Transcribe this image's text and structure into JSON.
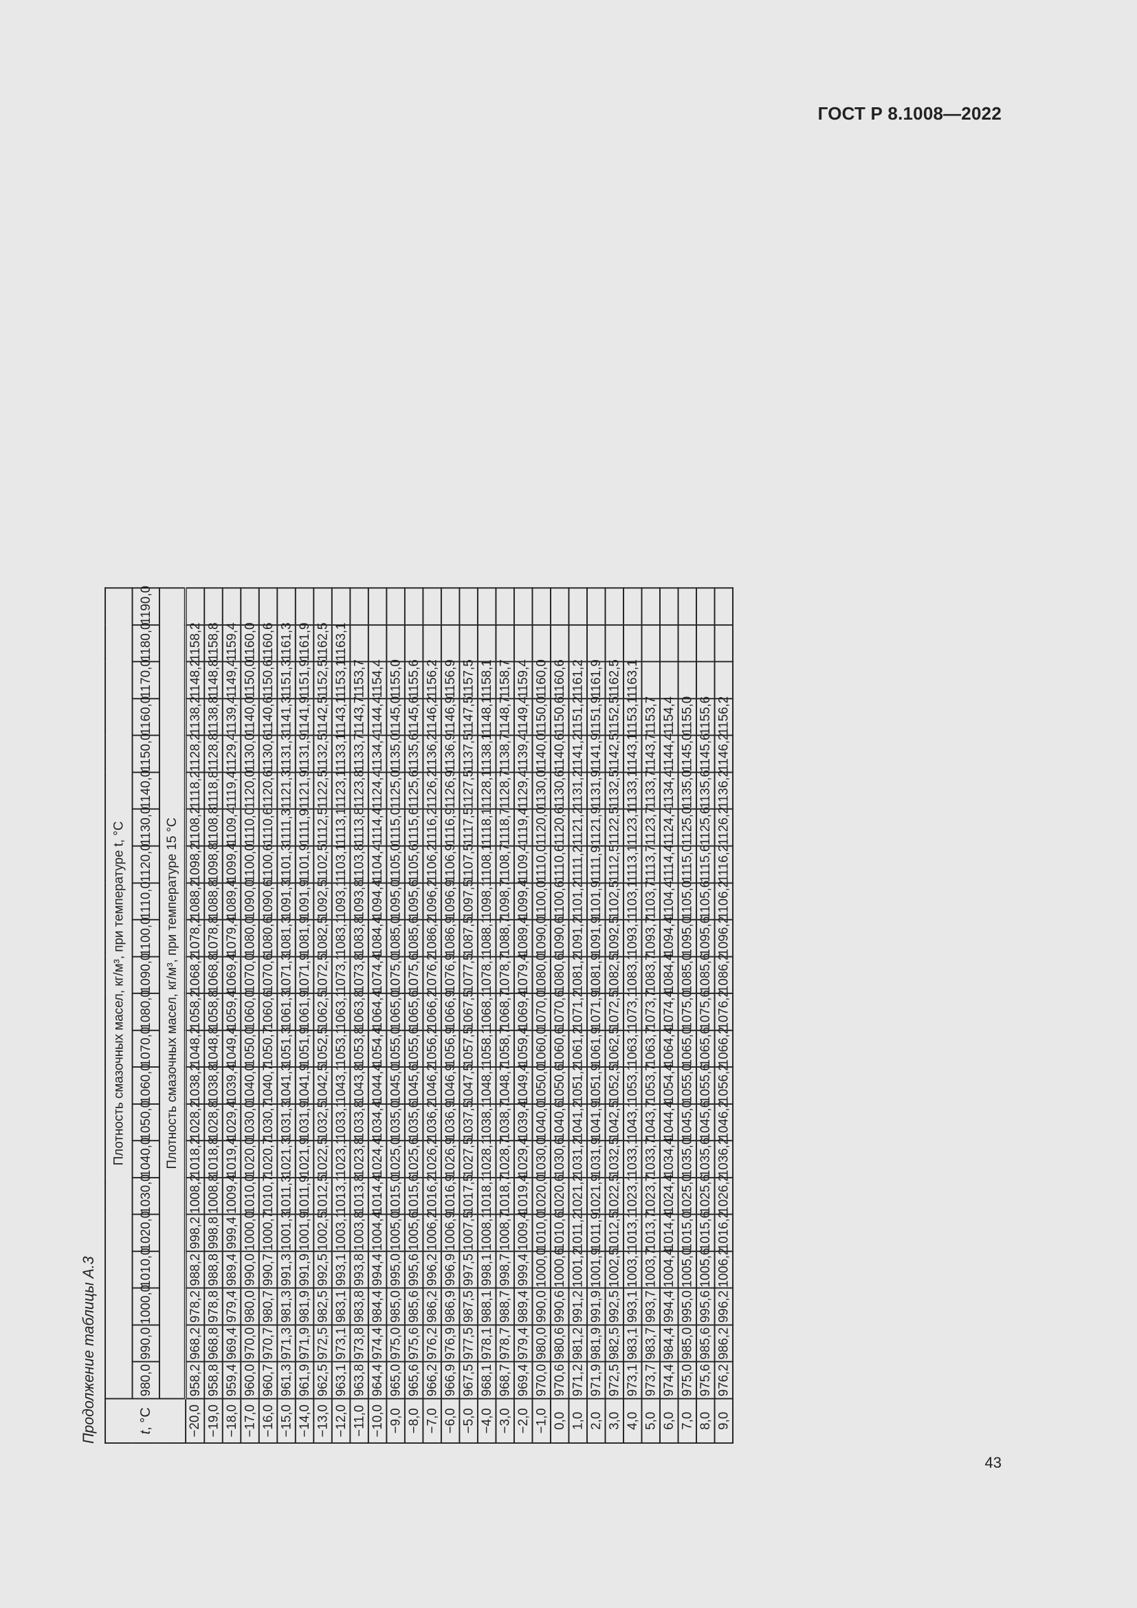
{
  "header": {
    "document_code": "ГОСТ Р 8.1008—2022"
  },
  "footer": {
    "page_number": "43"
  },
  "table": {
    "caption": "Продолжение таблицы А.3",
    "t_header": "t, °C",
    "group_header": "Плотность смазочных масел, кг/м³, при температуре t, °C",
    "sub_header": "Плотность смазочных масел, кг/м³, при температуре 15 °C",
    "columns": [
      "980,0",
      "990,0",
      "1000,0",
      "1010,0",
      "1020,0",
      "1030,0",
      "1040,0",
      "1050,0",
      "1060,0",
      "1070,0",
      "1080,0",
      "1090,0",
      "1100,0",
      "1110,0",
      "1120,0",
      "1130,0",
      "1140,0",
      "1150,0",
      "1160,0",
      "1170,0",
      "1180,0",
      "1190,0"
    ],
    "rows": [
      {
        "t": "−20,0",
        "v": [
          "958,2",
          "968,2",
          "978,2",
          "988,2",
          "998,2",
          "1008,2",
          "1018,2",
          "1028,2",
          "1038,2",
          "1048,2",
          "1058,2",
          "1068,2",
          "1078,2",
          "1088,2",
          "1098,2",
          "1108,2",
          "1118,2",
          "1128,2",
          "1138,2",
          "1148,2",
          "1158,2",
          ""
        ]
      },
      {
        "t": "−19,0",
        "v": [
          "958,8",
          "968,8",
          "978,8",
          "988,8",
          "998,8",
          "1008,8",
          "1018,8",
          "1028,8",
          "1038,8",
          "1048,8",
          "1058,8",
          "1068,8",
          "1078,8",
          "1088,8",
          "1098,8",
          "1108,8",
          "1118,8",
          "1128,8",
          "1138,8",
          "1148,8",
          "1158,8",
          ""
        ]
      },
      {
        "t": "−18,0",
        "v": [
          "959,4",
          "969,4",
          "979,4",
          "989,4",
          "999,4",
          "1009,4",
          "1019,4",
          "1029,4",
          "1039,4",
          "1049,4",
          "1059,4",
          "1069,4",
          "1079,4",
          "1089,4",
          "1099,4",
          "1109,4",
          "1119,4",
          "1129,4",
          "1139,4",
          "1149,4",
          "1159,4",
          ""
        ]
      },
      {
        "t": "−17,0",
        "v": [
          "960,0",
          "970,0",
          "980,0",
          "990,0",
          "1000,0",
          "1010,0",
          "1020,0",
          "1030,0",
          "1040,0",
          "1050,0",
          "1060,0",
          "1070,0",
          "1080,0",
          "1090,0",
          "1100,0",
          "1110,0",
          "1120,0",
          "1130,0",
          "1140,0",
          "1150,0",
          "1160,0",
          ""
        ]
      },
      {
        "t": "−16,0",
        "v": [
          "960,7",
          "970,7",
          "980,7",
          "990,7",
          "1000,7",
          "1010,7",
          "1020,7",
          "1030,7",
          "1040,7",
          "1050,7",
          "1060,6",
          "1070,6",
          "1080,6",
          "1090,6",
          "1100,6",
          "1110,6",
          "1120,6",
          "1130,6",
          "1140,6",
          "1150,6",
          "1160,6",
          ""
        ]
      },
      {
        "t": "−15,0",
        "v": [
          "961,3",
          "971,3",
          "981,3",
          "991,3",
          "1001,3",
          "1011,3",
          "1021,3",
          "1031,3",
          "1041,3",
          "1051,3",
          "1061,3",
          "1071,3",
          "1081,3",
          "1091,3",
          "1101,3",
          "1111,3",
          "1121,3",
          "1131,3",
          "1141,3",
          "1151,3",
          "1161,3",
          ""
        ]
      },
      {
        "t": "−14,0",
        "v": [
          "961,9",
          "971,9",
          "981,9",
          "991,9",
          "1001,9",
          "1011,9",
          "1021,9",
          "1031,9",
          "1041,9",
          "1051,9",
          "1061,9",
          "1071,9",
          "1081,9",
          "1091,9",
          "1101,9",
          "1111,9",
          "1121,9",
          "1131,9",
          "1141,9",
          "1151,9",
          "1161,9",
          ""
        ]
      },
      {
        "t": "−13,0",
        "v": [
          "962,5",
          "972,5",
          "982,5",
          "992,5",
          "1002,5",
          "1012,5",
          "1022,5",
          "1032,5",
          "1042,5",
          "1052,5",
          "1062,5",
          "1072,5",
          "1082,5",
          "1092,5",
          "1102,5",
          "1112,5",
          "1122,5",
          "1132,5",
          "1142,5",
          "1152,5",
          "1162,5",
          ""
        ]
      },
      {
        "t": "−12,0",
        "v": [
          "963,1",
          "973,1",
          "983,1",
          "993,1",
          "1003,1",
          "1013,1",
          "1023,1",
          "1033,1",
          "1043,1",
          "1053,1",
          "1063,1",
          "1073,1",
          "1083,1",
          "1093,1",
          "1103,1",
          "1113,1",
          "1123,1",
          "1133,1",
          "1143,1",
          "1153,1",
          "1163,1",
          ""
        ]
      },
      {
        "t": "−11,0",
        "v": [
          "963,8",
          "973,8",
          "983,8",
          "993,8",
          "1003,8",
          "1013,8",
          "1023,8",
          "1033,8",
          "1043,8",
          "1053,8",
          "1063,8",
          "1073,8",
          "1083,8",
          "1093,8",
          "1103,8",
          "1113,8",
          "1123,8",
          "1133,7",
          "1143,7",
          "1153,7",
          "",
          ""
        ]
      },
      {
        "t": "−10,0",
        "v": [
          "964,4",
          "974,4",
          "984,4",
          "994,4",
          "1004,4",
          "1014,4",
          "1024,4",
          "1034,4",
          "1044,4",
          "1054,4",
          "1064,4",
          "1074,4",
          "1084,4",
          "1094,4",
          "1104,4",
          "1114,4",
          "1124,4",
          "1134,4",
          "1144,4",
          "1154,4",
          "",
          ""
        ]
      },
      {
        "t": "−9,0",
        "v": [
          "965,0",
          "975,0",
          "985,0",
          "995,0",
          "1005,0",
          "1015,0",
          "1025,0",
          "1035,0",
          "1045,0",
          "1055,0",
          "1065,0",
          "1075,0",
          "1085,0",
          "1095,0",
          "1105,0",
          "1115,0",
          "1125,0",
          "1135,0",
          "1145,0",
          "1155,0",
          "",
          ""
        ]
      },
      {
        "t": "−8,0",
        "v": [
          "965,6",
          "975,6",
          "985,6",
          "995,6",
          "1005,6",
          "1015,6",
          "1025,6",
          "1035,6",
          "1045,6",
          "1055,6",
          "1065,6",
          "1075,6",
          "1085,6",
          "1095,6",
          "1105,6",
          "1115,6",
          "1125,6",
          "1135,6",
          "1145,6",
          "1155,6",
          "",
          ""
        ]
      },
      {
        "t": "−7,0",
        "v": [
          "966,2",
          "976,2",
          "986,2",
          "996,2",
          "1006,2",
          "1016,2",
          "1026,2",
          "1036,2",
          "1046,2",
          "1056,2",
          "1066,2",
          "1076,2",
          "1086,2",
          "1096,2",
          "1106,2",
          "1116,2",
          "1126,2",
          "1136,2",
          "1146,2",
          "1156,2",
          "",
          ""
        ]
      },
      {
        "t": "−6,0",
        "v": [
          "966,9",
          "976,9",
          "986,9",
          "996,9",
          "1006,9",
          "1016,9",
          "1026,9",
          "1036,9",
          "1046,9",
          "1056,9",
          "1066,9",
          "1076,9",
          "1086,9",
          "1096,9",
          "1106,9",
          "1116,9",
          "1126,9",
          "1136,9",
          "1146,9",
          "1156,9",
          "",
          ""
        ]
      },
      {
        "t": "−5,0",
        "v": [
          "967,5",
          "977,5",
          "987,5",
          "997,5",
          "1007,5",
          "1017,5",
          "1027,5",
          "1037,5",
          "1047,5",
          "1057,5",
          "1067,5",
          "1077,5",
          "1087,5",
          "1097,5",
          "1107,5",
          "1117,5",
          "1127,5",
          "1137,5",
          "1147,5",
          "1157,5",
          "",
          ""
        ]
      },
      {
        "t": "−4,0",
        "v": [
          "968,1",
          "978,1",
          "988,1",
          "998,1",
          "1008,1",
          "1018,1",
          "1028,1",
          "1038,1",
          "1048,1",
          "1058,1",
          "1068,1",
          "1078,1",
          "1088,1",
          "1098,1",
          "1108,1",
          "1118,1",
          "1128,1",
          "1138,1",
          "1148,1",
          "1158,1",
          "",
          ""
        ]
      },
      {
        "t": "−3,0",
        "v": [
          "968,7",
          "978,7",
          "988,7",
          "998,7",
          "1008,7",
          "1018,7",
          "1028,7",
          "1038,7",
          "1048,7",
          "1058,7",
          "1068,7",
          "1078,7",
          "1088,7",
          "1098,7",
          "1108,7",
          "1118,7",
          "1128,7",
          "1138,7",
          "1148,7",
          "1158,7",
          "",
          ""
        ]
      },
      {
        "t": "−2,0",
        "v": [
          "969,4",
          "979,4",
          "989,4",
          "999,4",
          "1009,4",
          "1019,4",
          "1029,4",
          "1039,4",
          "1049,4",
          "1059,4",
          "1069,4",
          "1079,4",
          "1089,4",
          "1099,4",
          "1109,4",
          "1119,4",
          "1129,4",
          "1139,4",
          "1149,4",
          "1159,4",
          "",
          ""
        ]
      },
      {
        "t": "−1,0",
        "v": [
          "970,0",
          "980,0",
          "990,0",
          "1000,0",
          "1010,0",
          "1020,0",
          "1030,0",
          "1040,0",
          "1050,0",
          "1060,0",
          "1070,0",
          "1080,0",
          "1090,0",
          "1100,0",
          "1110,0",
          "1120,0",
          "1130,0",
          "1140,0",
          "1150,0",
          "1160,0",
          "",
          ""
        ]
      },
      {
        "t": "0,0",
        "v": [
          "970,6",
          "980,6",
          "990,6",
          "1000,6",
          "1010,6",
          "1020,6",
          "1030,6",
          "1040,6",
          "1050,6",
          "1060,6",
          "1070,6",
          "1080,6",
          "1090,6",
          "1100,6",
          "1110,6",
          "1120,6",
          "1130,6",
          "1140,6",
          "1150,6",
          "1160,6",
          "",
          ""
        ]
      },
      {
        "t": "1,0",
        "v": [
          "971,2",
          "981,2",
          "991,2",
          "1001,2",
          "1011,2",
          "1021,2",
          "1031,2",
          "1041,2",
          "1051,2",
          "1061,2",
          "1071,2",
          "1081,2",
          "1091,2",
          "1101,2",
          "1111,2",
          "1121,2",
          "1131,2",
          "1141,2",
          "1151,2",
          "1161,2",
          "",
          ""
        ]
      },
      {
        "t": "2,0",
        "v": [
          "971,9",
          "981,9",
          "991,9",
          "1001,9",
          "1011,9",
          "1021,9",
          "1031,9",
          "1041,9",
          "1051,9",
          "1061,9",
          "1071,9",
          "1081,9",
          "1091,9",
          "1101,9",
          "1111,9",
          "1121,9",
          "1131,9",
          "1141,9",
          "1151,9",
          "1161,9",
          "",
          ""
        ]
      },
      {
        "t": "3,0",
        "v": [
          "972,5",
          "982,5",
          "992,5",
          "1002,5",
          "1012,5",
          "1022,5",
          "1032,5",
          "1042,5",
          "1052,5",
          "1062,5",
          "1072,5",
          "1082,5",
          "1092,5",
          "1102,5",
          "1112,5",
          "1122,5",
          "1132,5",
          "1142,5",
          "1152,5",
          "1162,5",
          "",
          ""
        ]
      },
      {
        "t": "4,0",
        "v": [
          "973,1",
          "983,1",
          "993,1",
          "1003,1",
          "1013,1",
          "1023,1",
          "1033,1",
          "1043,1",
          "1053,1",
          "1063,1",
          "1073,1",
          "1083,1",
          "1093,1",
          "1103,1",
          "1113,1",
          "1123,1",
          "1133,1",
          "1143,1",
          "1153,1",
          "1163,1",
          "",
          ""
        ]
      },
      {
        "t": "5,0",
        "v": [
          "973,7",
          "983,7",
          "993,7",
          "1003,7",
          "1013,7",
          "1023,7",
          "1033,7",
          "1043,7",
          "1053,7",
          "1063,7",
          "1073,7",
          "1083,7",
          "1093,7",
          "1103,7",
          "1113,7",
          "1123,7",
          "1133,7",
          "1143,7",
          "1153,7",
          "",
          "",
          ""
        ]
      },
      {
        "t": "6,0",
        "v": [
          "974,4",
          "984,4",
          "994,4",
          "1004,4",
          "1014,4",
          "1024,4",
          "1034,4",
          "1044,4",
          "1054,4",
          "1064,4",
          "1074,4",
          "1084,4",
          "1094,4",
          "1104,4",
          "1114,4",
          "1124,4",
          "1134,4",
          "1144,4",
          "1154,4",
          "",
          "",
          ""
        ]
      },
      {
        "t": "7,0",
        "v": [
          "975,0",
          "985,0",
          "995,0",
          "1005,0",
          "1015,0",
          "1025,0",
          "1035,0",
          "1045,0",
          "1055,0",
          "1065,0",
          "1075,0",
          "1085,0",
          "1095,0",
          "1105,0",
          "1115,0",
          "1125,0",
          "1135,0",
          "1145,0",
          "1155,0",
          "",
          "",
          ""
        ]
      },
      {
        "t": "8,0",
        "v": [
          "975,6",
          "985,6",
          "995,6",
          "1005,6",
          "1015,6",
          "1025,6",
          "1035,6",
          "1045,6",
          "1055,6",
          "1065,6",
          "1075,6",
          "1085,6",
          "1095,6",
          "1105,6",
          "1115,6",
          "1125,6",
          "1135,6",
          "1145,6",
          "1155,6",
          "",
          "",
          ""
        ]
      },
      {
        "t": "9,0",
        "v": [
          "976,2",
          "986,2",
          "996,2",
          "1006,2",
          "1016,2",
          "1026,2",
          "1036,2",
          "1046,2",
          "1056,2",
          "1066,2",
          "1076,2",
          "1086,2",
          "1096,2",
          "1106,2",
          "1116,2",
          "1126,2",
          "1136,2",
          "1146,2",
          "1156,2",
          "",
          "",
          ""
        ]
      }
    ]
  }
}
